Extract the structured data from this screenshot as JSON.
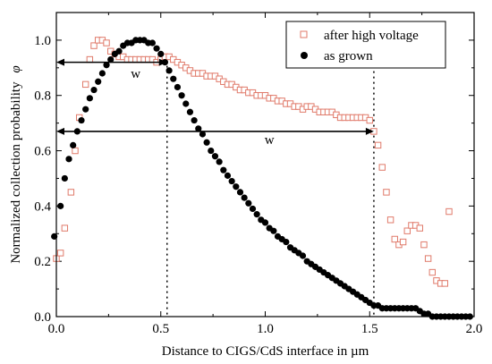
{
  "chart_data": {
    "type": "scatter",
    "xlabel": "Distance to CIGS/CdS interface in µm",
    "ylabel": "Normalized collection probability",
    "ylabel_symbol": "φ",
    "xlim": [
      0.0,
      2.0
    ],
    "ylim": [
      0.0,
      1.1
    ],
    "x_ticks": [
      "0.0",
      "0.5",
      "1.0",
      "1.5",
      "2.0"
    ],
    "y_ticks": [
      "0.0",
      "0.2",
      "0.4",
      "0.6",
      "0.8",
      "1.0"
    ],
    "legend_position": "top-right",
    "series": [
      {
        "name": "after high voltage",
        "marker": "open-square",
        "color": "#e07a6a",
        "points": [
          [
            0.0,
            0.21
          ],
          [
            0.02,
            0.23
          ],
          [
            0.04,
            0.32
          ],
          [
            0.07,
            0.45
          ],
          [
            0.09,
            0.6
          ],
          [
            0.11,
            0.72
          ],
          [
            0.14,
            0.84
          ],
          [
            0.16,
            0.93
          ],
          [
            0.18,
            0.98
          ],
          [
            0.2,
            1.0
          ],
          [
            0.22,
            1.0
          ],
          [
            0.24,
            0.99
          ],
          [
            0.26,
            0.96
          ],
          [
            0.28,
            0.95
          ],
          [
            0.3,
            0.94
          ],
          [
            0.32,
            0.94
          ],
          [
            0.34,
            0.93
          ],
          [
            0.36,
            0.93
          ],
          [
            0.38,
            0.93
          ],
          [
            0.4,
            0.93
          ],
          [
            0.42,
            0.93
          ],
          [
            0.44,
            0.93
          ],
          [
            0.46,
            0.93
          ],
          [
            0.48,
            0.92
          ],
          [
            0.5,
            0.93
          ],
          [
            0.52,
            0.94
          ],
          [
            0.54,
            0.94
          ],
          [
            0.56,
            0.93
          ],
          [
            0.58,
            0.92
          ],
          [
            0.6,
            0.91
          ],
          [
            0.62,
            0.9
          ],
          [
            0.64,
            0.89
          ],
          [
            0.66,
            0.88
          ],
          [
            0.68,
            0.88
          ],
          [
            0.7,
            0.88
          ],
          [
            0.72,
            0.87
          ],
          [
            0.74,
            0.87
          ],
          [
            0.76,
            0.87
          ],
          [
            0.78,
            0.86
          ],
          [
            0.8,
            0.85
          ],
          [
            0.82,
            0.84
          ],
          [
            0.84,
            0.84
          ],
          [
            0.86,
            0.83
          ],
          [
            0.88,
            0.82
          ],
          [
            0.9,
            0.82
          ],
          [
            0.92,
            0.81
          ],
          [
            0.94,
            0.81
          ],
          [
            0.96,
            0.8
          ],
          [
            0.98,
            0.8
          ],
          [
            1.0,
            0.8
          ],
          [
            1.02,
            0.79
          ],
          [
            1.04,
            0.79
          ],
          [
            1.06,
            0.78
          ],
          [
            1.08,
            0.78
          ],
          [
            1.1,
            0.77
          ],
          [
            1.12,
            0.77
          ],
          [
            1.14,
            0.76
          ],
          [
            1.16,
            0.76
          ],
          [
            1.18,
            0.75
          ],
          [
            1.2,
            0.76
          ],
          [
            1.22,
            0.76
          ],
          [
            1.24,
            0.75
          ],
          [
            1.26,
            0.74
          ],
          [
            1.28,
            0.74
          ],
          [
            1.3,
            0.74
          ],
          [
            1.32,
            0.74
          ],
          [
            1.34,
            0.73
          ],
          [
            1.36,
            0.72
          ],
          [
            1.38,
            0.72
          ],
          [
            1.4,
            0.72
          ],
          [
            1.42,
            0.72
          ],
          [
            1.44,
            0.72
          ],
          [
            1.46,
            0.72
          ],
          [
            1.48,
            0.72
          ],
          [
            1.5,
            0.71
          ],
          [
            1.52,
            0.67
          ],
          [
            1.54,
            0.62
          ],
          [
            1.56,
            0.54
          ],
          [
            1.58,
            0.45
          ],
          [
            1.6,
            0.35
          ],
          [
            1.62,
            0.28
          ],
          [
            1.64,
            0.26
          ],
          [
            1.66,
            0.27
          ],
          [
            1.68,
            0.31
          ],
          [
            1.7,
            0.33
          ],
          [
            1.72,
            0.33
          ],
          [
            1.74,
            0.32
          ],
          [
            1.76,
            0.26
          ],
          [
            1.78,
            0.21
          ],
          [
            1.8,
            0.16
          ],
          [
            1.82,
            0.13
          ],
          [
            1.84,
            0.12
          ],
          [
            1.86,
            0.12
          ],
          [
            1.88,
            0.38
          ]
        ]
      },
      {
        "name": "as grown",
        "marker": "filled-circle",
        "color": "#000000",
        "points": [
          [
            -0.01,
            0.29
          ],
          [
            0.02,
            0.4
          ],
          [
            0.04,
            0.5
          ],
          [
            0.06,
            0.57
          ],
          [
            0.08,
            0.62
          ],
          [
            0.1,
            0.67
          ],
          [
            0.12,
            0.71
          ],
          [
            0.14,
            0.75
          ],
          [
            0.16,
            0.79
          ],
          [
            0.18,
            0.82
          ],
          [
            0.2,
            0.85
          ],
          [
            0.22,
            0.88
          ],
          [
            0.24,
            0.91
          ],
          [
            0.26,
            0.93
          ],
          [
            0.28,
            0.95
          ],
          [
            0.3,
            0.96
          ],
          [
            0.32,
            0.98
          ],
          [
            0.34,
            0.99
          ],
          [
            0.36,
            0.99
          ],
          [
            0.38,
            1.0
          ],
          [
            0.4,
            1.0
          ],
          [
            0.42,
            1.0
          ],
          [
            0.44,
            0.99
          ],
          [
            0.46,
            0.99
          ],
          [
            0.48,
            0.97
          ],
          [
            0.5,
            0.95
          ],
          [
            0.52,
            0.92
          ],
          [
            0.54,
            0.89
          ],
          [
            0.56,
            0.86
          ],
          [
            0.58,
            0.83
          ],
          [
            0.6,
            0.8
          ],
          [
            0.62,
            0.77
          ],
          [
            0.64,
            0.74
          ],
          [
            0.66,
            0.71
          ],
          [
            0.68,
            0.68
          ],
          [
            0.7,
            0.66
          ],
          [
            0.72,
            0.63
          ],
          [
            0.74,
            0.6
          ],
          [
            0.76,
            0.58
          ],
          [
            0.78,
            0.56
          ],
          [
            0.8,
            0.53
          ],
          [
            0.82,
            0.51
          ],
          [
            0.84,
            0.49
          ],
          [
            0.86,
            0.47
          ],
          [
            0.88,
            0.45
          ],
          [
            0.9,
            0.43
          ],
          [
            0.92,
            0.41
          ],
          [
            0.94,
            0.39
          ],
          [
            0.96,
            0.37
          ],
          [
            0.98,
            0.35
          ],
          [
            1.0,
            0.34
          ],
          [
            1.02,
            0.32
          ],
          [
            1.04,
            0.31
          ],
          [
            1.06,
            0.29
          ],
          [
            1.08,
            0.28
          ],
          [
            1.1,
            0.27
          ],
          [
            1.12,
            0.25
          ],
          [
            1.14,
            0.24
          ],
          [
            1.16,
            0.23
          ],
          [
            1.18,
            0.22
          ],
          [
            1.2,
            0.2
          ],
          [
            1.22,
            0.19
          ],
          [
            1.24,
            0.18
          ],
          [
            1.26,
            0.17
          ],
          [
            1.28,
            0.16
          ],
          [
            1.3,
            0.15
          ],
          [
            1.32,
            0.14
          ],
          [
            1.34,
            0.13
          ],
          [
            1.36,
            0.12
          ],
          [
            1.38,
            0.11
          ],
          [
            1.4,
            0.1
          ],
          [
            1.42,
            0.09
          ],
          [
            1.44,
            0.08
          ],
          [
            1.46,
            0.07
          ],
          [
            1.48,
            0.06
          ],
          [
            1.5,
            0.05
          ],
          [
            1.52,
            0.04
          ],
          [
            1.54,
            0.04
          ],
          [
            1.56,
            0.03
          ],
          [
            1.58,
            0.03
          ],
          [
            1.6,
            0.03
          ],
          [
            1.62,
            0.03
          ],
          [
            1.64,
            0.03
          ],
          [
            1.66,
            0.03
          ],
          [
            1.68,
            0.03
          ],
          [
            1.7,
            0.03
          ],
          [
            1.72,
            0.03
          ],
          [
            1.74,
            0.02
          ],
          [
            1.76,
            0.01
          ],
          [
            1.78,
            0.01
          ],
          [
            1.8,
            0.0
          ],
          [
            1.82,
            0.0
          ],
          [
            1.84,
            0.0
          ],
          [
            1.86,
            0.0
          ],
          [
            1.88,
            0.0
          ],
          [
            1.9,
            0.0
          ],
          [
            1.92,
            0.0
          ],
          [
            1.94,
            0.0
          ],
          [
            1.96,
            0.0
          ],
          [
            1.98,
            0.0
          ]
        ]
      }
    ],
    "annotations": [
      {
        "label": "w",
        "x_start": 0.0,
        "x_end": 0.53,
        "y": 0.92,
        "label_x": 0.38,
        "label_y": 0.88
      },
      {
        "label": "w",
        "x_start": 0.0,
        "x_end": 1.52,
        "y": 0.67,
        "label_x": 1.02,
        "label_y": 0.64
      }
    ],
    "guide_lines_x": [
      0.53,
      1.52
    ]
  }
}
